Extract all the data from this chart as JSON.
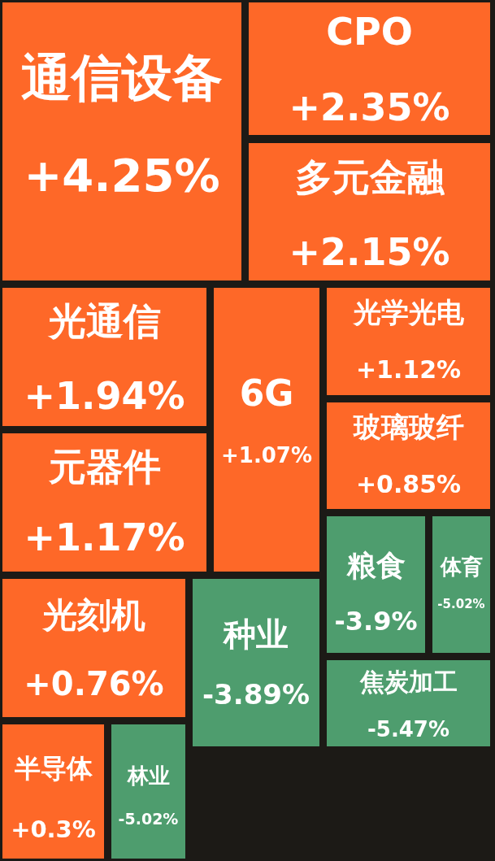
{
  "chart_data": {
    "type": "other",
    "categories": [
      "通信设备",
      "CPO",
      "多元金融",
      "光通信",
      "元器件",
      "6G",
      "光学光电",
      "玻璃玻纤",
      "光刻机",
      "半导体",
      "种业",
      "粮食",
      "体育",
      "焦炭加工",
      "林业"
    ],
    "values": [
      4.25,
      2.35,
      2.15,
      1.94,
      1.17,
      1.07,
      1.12,
      0.85,
      0.76,
      0.3,
      -3.89,
      -3.9,
      -5.02,
      -5.47,
      -5.02
    ],
    "value_labels": [
      "+4.25%",
      "+2.35%",
      "+2.15%",
      "+1.94%",
      "+1.17%",
      "+1.07%",
      "+1.12%",
      "+0.85%",
      "+0.76%",
      "+0.3%",
      "-3.89%",
      "-3.9%",
      "-5.02%",
      "-5.47%",
      "-5.02%"
    ],
    "colors": [
      "#fe6828",
      "#fe6828",
      "#fe6828",
      "#fe6828",
      "#fe6828",
      "#fe6828",
      "#fe6828",
      "#fe6828",
      "#fe6828",
      "#fe6828",
      "#4e9d6e",
      "#4e9d6e",
      "#4e9d6e",
      "#4e9d6e",
      "#4e9d6e"
    ]
  }
}
